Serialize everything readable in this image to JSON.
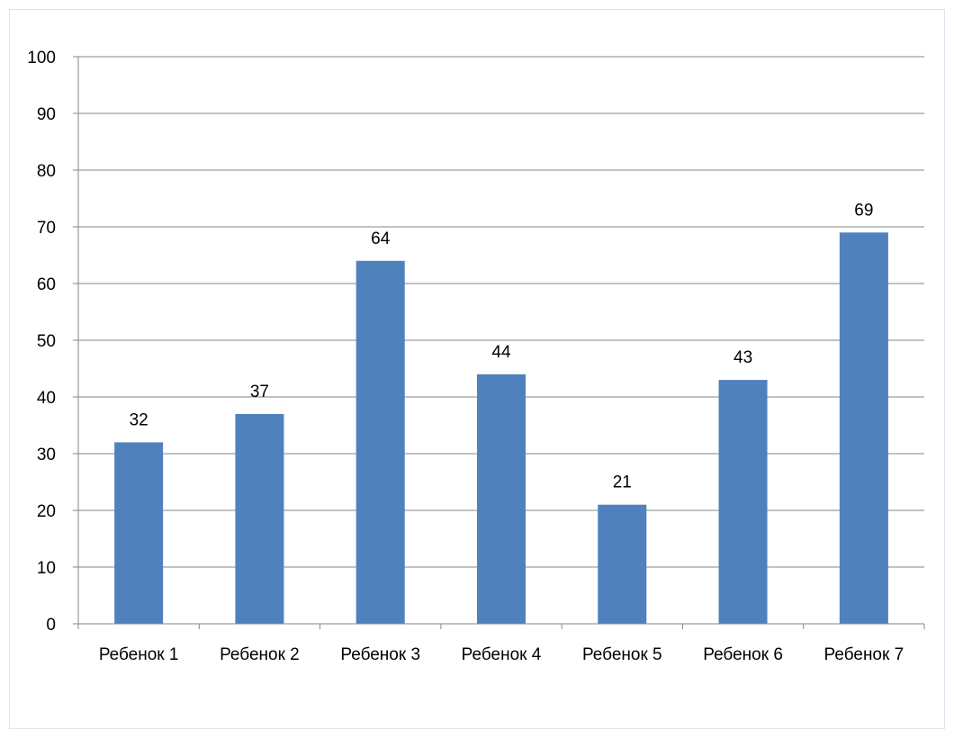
{
  "chart_data": {
    "type": "bar",
    "categories": [
      "Ребенок 1",
      "Ребенок 2",
      "Ребенок 3",
      "Ребенок 4",
      "Ребенок 5",
      "Ребенок 6",
      "Ребенок 7"
    ],
    "values": [
      32,
      37,
      64,
      44,
      21,
      43,
      69
    ],
    "title": "",
    "xlabel": "",
    "ylabel": "",
    "ylim": [
      0,
      100
    ],
    "yticks": [
      0,
      10,
      20,
      30,
      40,
      50,
      60,
      70,
      80,
      90,
      100
    ],
    "grid": true,
    "legend": "none",
    "data_labels": true,
    "bar_color": "#4f81bd",
    "grid_color": "#868686"
  }
}
